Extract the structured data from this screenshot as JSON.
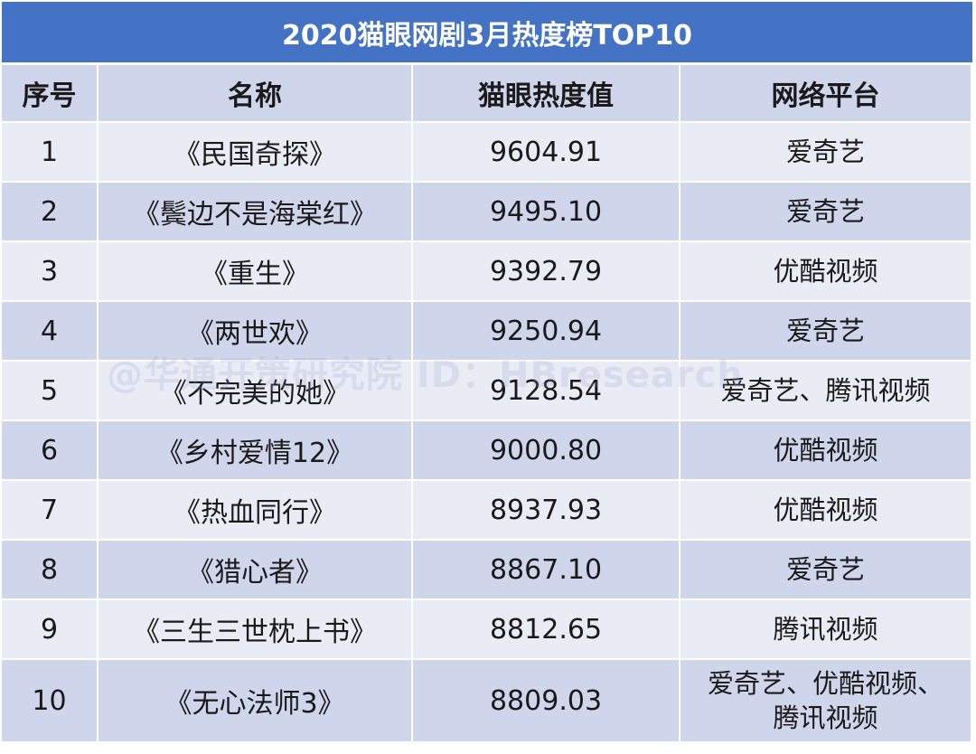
{
  "title": "2020猫眼网剧3月热度榜TOP10",
  "headers": [
    "序号",
    "名称",
    "猫眼热度值",
    "网络平台"
  ],
  "rows": [
    {
      "rank": "1",
      "name": "《民国奇探》",
      "heat": "9604.91",
      "platform": "爱奇艺"
    },
    {
      "rank": "2",
      "name": "《鬓边不是海棠红》",
      "heat": "9495.10",
      "platform": "爱奇艺"
    },
    {
      "rank": "3",
      "name": "《重生》",
      "heat": "9392.79",
      "platform": "优酷视频"
    },
    {
      "rank": "4",
      "name": "《两世欢》",
      "heat": "9250.94",
      "platform": "爱奇艺"
    },
    {
      "rank": "5",
      "name": "《不完美的她》",
      "heat": "9128.54",
      "platform": "爱奇艺、腾讯视频"
    },
    {
      "rank": "6",
      "name": "《乡村爱情12》",
      "heat": "9000.80",
      "platform": "优酷视频"
    },
    {
      "rank": "7",
      "name": "《热血同行》",
      "heat": "8937.93",
      "platform": "优酷视频"
    },
    {
      "rank": "8",
      "name": "《猎心者》",
      "heat": "8867.10",
      "platform": "爱奇艺"
    },
    {
      "rank": "9",
      "name": "《三生三世枕上书》",
      "heat": "8812.65",
      "platform": "腾讯视频"
    },
    {
      "rank": "10",
      "name": "《无心法师3》",
      "heat": "8809.03",
      "platform_lines": [
        "爱奇艺、优酷视频、",
        "腾讯视频"
      ]
    }
  ],
  "watermark": "@华通开策研究院 ID：HBresearch",
  "colors": {
    "title_bg": "#4472c4",
    "header_bg": "#cfd5ea",
    "row_light": "#e9ebf5",
    "row_dark": "#cfd5ea"
  }
}
